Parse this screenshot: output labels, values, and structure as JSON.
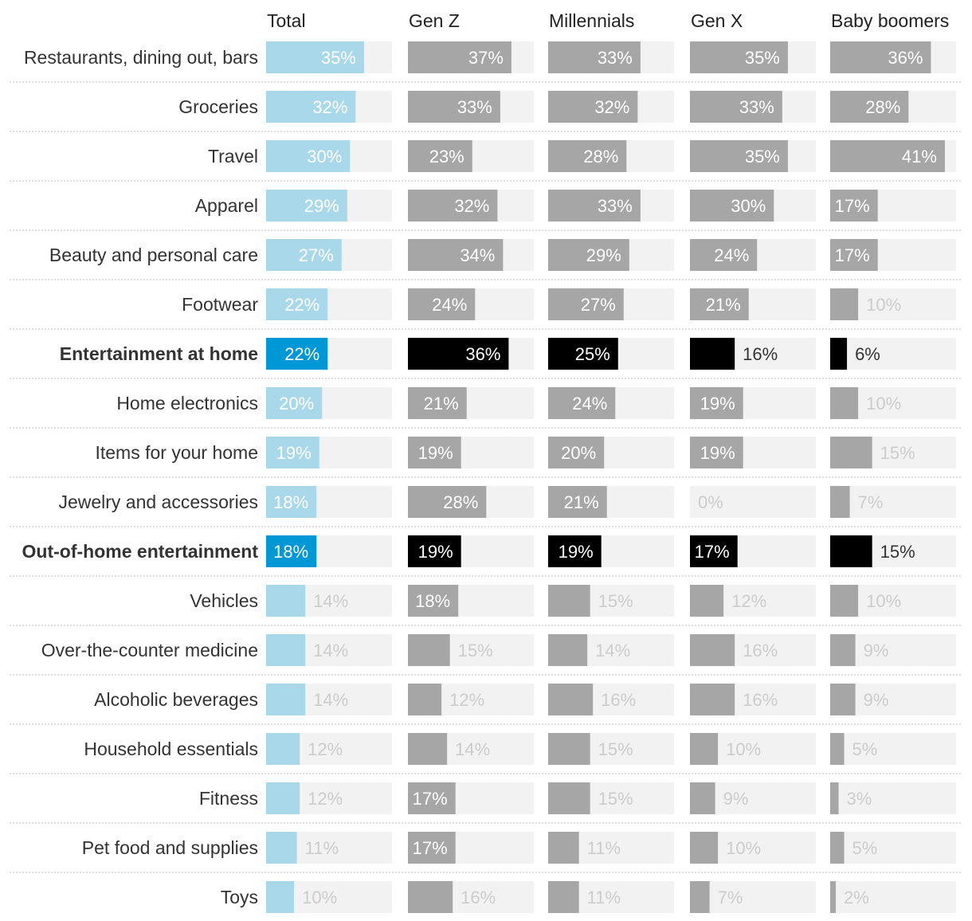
{
  "chart_data": {
    "type": "bar",
    "title": "",
    "xlabel": "",
    "ylabel": "",
    "xlim": [
      0,
      45
    ],
    "grid": false,
    "legend": "none",
    "columns": [
      "Total",
      "Gen Z",
      "Millennials",
      "Gen X",
      "Baby boomers"
    ],
    "categories": [
      "Restaurants, dining out, bars",
      "Groceries",
      "Travel",
      "Apparel",
      "Beauty and personal care",
      "Footwear",
      "Entertainment at home",
      "Home electronics",
      "Items for your home",
      "Jewelry and accessories",
      "Out-of-home entertainment",
      "Vehicles",
      "Over-the-counter medicine",
      "Alcoholic beverages",
      "Household essentials",
      "Fitness",
      "Pet food and supplies",
      "Toys"
    ],
    "highlighted_categories": [
      "Entertainment at home",
      "Out-of-home entertainment"
    ],
    "series": [
      {
        "name": "Total",
        "values": [
          35,
          32,
          30,
          29,
          27,
          22,
          22,
          20,
          19,
          18,
          18,
          14,
          14,
          14,
          12,
          12,
          11,
          10
        ]
      },
      {
        "name": "Gen Z",
        "values": [
          37,
          33,
          23,
          32,
          34,
          24,
          36,
          21,
          19,
          28,
          19,
          18,
          15,
          12,
          14,
          17,
          17,
          16
        ]
      },
      {
        "name": "Millennials",
        "values": [
          33,
          32,
          28,
          33,
          29,
          27,
          25,
          24,
          20,
          21,
          19,
          15,
          14,
          16,
          15,
          15,
          11,
          11
        ]
      },
      {
        "name": "Gen X",
        "values": [
          35,
          33,
          35,
          30,
          24,
          21,
          16,
          19,
          19,
          0,
          17,
          12,
          16,
          16,
          10,
          9,
          10,
          7
        ]
      },
      {
        "name": "Baby boomers",
        "values": [
          36,
          28,
          41,
          17,
          17,
          10,
          6,
          10,
          15,
          7,
          15,
          10,
          9,
          9,
          5,
          3,
          5,
          2
        ]
      }
    ],
    "value_suffix": "%",
    "colors": {
      "total_bar": "#a8d8ea",
      "total_highlight": "#0097d6",
      "generation_bar": "#a6a6a6",
      "generation_highlight": "#000000",
      "track": "#f2f2f2",
      "label_on_bar": "#ffffff",
      "label_off_bar": "#cccccc",
      "label_off_bar_highlight": "#333333",
      "separator": "#bbbbbb"
    }
  }
}
